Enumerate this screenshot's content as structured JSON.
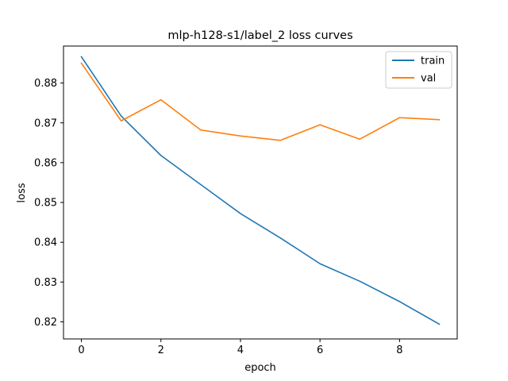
{
  "chart_data": {
    "type": "line",
    "title": "mlp-h128-s1/label_2 loss curves",
    "xlabel": "epoch",
    "ylabel": "loss",
    "x": [
      0,
      1,
      2,
      3,
      4,
      5,
      6,
      7,
      8,
      9
    ],
    "xlim": [
      -0.45,
      9.45
    ],
    "ylim": [
      0.8157,
      0.8893
    ],
    "xticks": [
      0,
      2,
      4,
      6,
      8
    ],
    "yticks": [
      0.82,
      0.83,
      0.84,
      0.85,
      0.86,
      0.87,
      0.88
    ],
    "xtick_labels": [
      "0",
      "2",
      "4",
      "6",
      "8"
    ],
    "ytick_labels": [
      "0.82",
      "0.83",
      "0.84",
      "0.85",
      "0.86",
      "0.87",
      "0.88"
    ],
    "grid": false,
    "legend_position": "top-right",
    "series": [
      {
        "name": "train",
        "color": "#1f77b4",
        "values": [
          0.8866,
          0.8717,
          0.8618,
          0.8545,
          0.8472,
          0.8411,
          0.8346,
          0.8302,
          0.8251,
          0.8194
        ]
      },
      {
        "name": "val",
        "color": "#ff7f0e",
        "values": [
          0.885,
          0.8705,
          0.8758,
          0.8682,
          0.8667,
          0.8656,
          0.8695,
          0.8659,
          0.8713,
          0.8708
        ]
      }
    ]
  }
}
